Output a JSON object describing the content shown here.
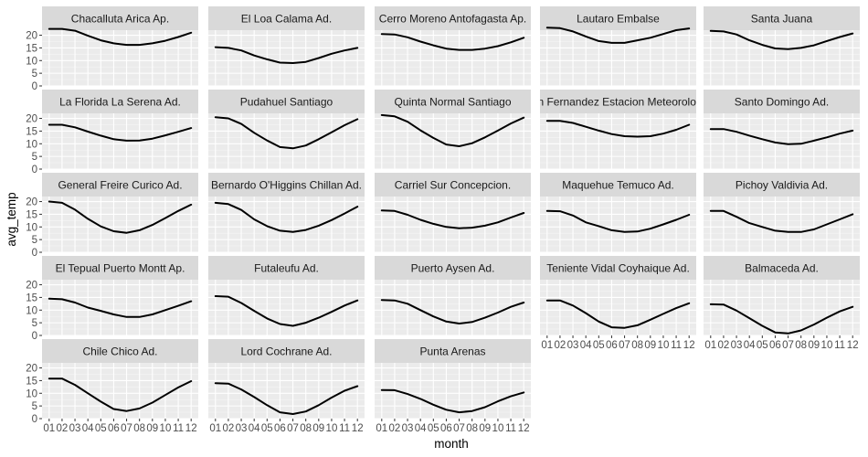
{
  "chart_data": {
    "type": "line",
    "xlabel": "month",
    "ylabel": "avg_temp",
    "x": [
      "01",
      "02",
      "03",
      "04",
      "05",
      "06",
      "07",
      "08",
      "09",
      "10",
      "11",
      "12"
    ],
    "ylim": [
      0,
      22
    ],
    "yticks": [
      0,
      5,
      10,
      15,
      20
    ],
    "facet_columns": 5,
    "grid": true,
    "panels": [
      {
        "title": "Chacalluta Arica Ap.",
        "values": [
          22.5,
          22.5,
          21.8,
          19.8,
          18.0,
          16.8,
          16.2,
          16.2,
          16.8,
          17.8,
          19.3,
          21.0
        ]
      },
      {
        "title": "El Loa Calama Ad.",
        "values": [
          15.3,
          15.0,
          14.0,
          12.0,
          10.5,
          9.2,
          9.0,
          9.5,
          11.0,
          12.7,
          14.0,
          15.0
        ]
      },
      {
        "title": "Cerro Moreno Antofagasta Ap.",
        "values": [
          20.5,
          20.3,
          19.2,
          17.5,
          16.0,
          14.7,
          14.2,
          14.2,
          14.7,
          15.7,
          17.2,
          19.0
        ]
      },
      {
        "title": "Lautaro Embalse",
        "values": [
          23.0,
          22.8,
          21.5,
          19.5,
          17.7,
          17.0,
          17.0,
          18.0,
          19.0,
          20.5,
          22.0,
          22.7
        ]
      },
      {
        "title": "Santa Juana",
        "values": [
          21.7,
          21.5,
          20.3,
          18.0,
          16.2,
          14.8,
          14.5,
          15.0,
          16.0,
          17.7,
          19.3,
          20.7
        ]
      },
      {
        "title": "La Florida La Serena Ad.",
        "values": [
          17.5,
          17.5,
          16.5,
          14.8,
          13.2,
          11.8,
          11.2,
          11.3,
          12.0,
          13.3,
          14.7,
          16.2
        ]
      },
      {
        "title": "Pudahuel Santiago",
        "values": [
          20.5,
          20.0,
          17.8,
          14.3,
          11.3,
          8.7,
          8.2,
          9.3,
          11.8,
          14.5,
          17.3,
          19.7
        ]
      },
      {
        "title": "Quinta Normal Santiago",
        "values": [
          21.3,
          20.8,
          18.7,
          15.3,
          12.3,
          9.7,
          9.0,
          10.2,
          12.5,
          15.2,
          18.0,
          20.3
        ]
      },
      {
        "title": "Juan Fernandez Estacion Meteorologica",
        "values": [
          19.0,
          19.0,
          18.2,
          16.7,
          15.2,
          13.8,
          13.0,
          12.8,
          13.0,
          14.0,
          15.5,
          17.5
        ]
      },
      {
        "title": "Santo Domingo Ad.",
        "values": [
          15.8,
          15.8,
          14.7,
          13.2,
          11.8,
          10.5,
          9.8,
          10.0,
          11.2,
          12.5,
          14.0,
          15.2
        ]
      },
      {
        "title": "General Freire Curico Ad.",
        "values": [
          20.0,
          19.5,
          16.8,
          13.2,
          10.2,
          8.3,
          7.7,
          8.7,
          10.8,
          13.5,
          16.3,
          18.8
        ]
      },
      {
        "title": "Bernardo O'Higgins Chillan Ad.",
        "values": [
          19.5,
          19.0,
          16.7,
          13.0,
          10.3,
          8.5,
          8.0,
          8.8,
          10.5,
          12.7,
          15.3,
          18.0
        ]
      },
      {
        "title": "Carriel Sur Concepcion.",
        "values": [
          16.5,
          16.3,
          14.8,
          12.8,
          11.2,
          10.0,
          9.5,
          9.7,
          10.5,
          11.8,
          13.7,
          15.5
        ]
      },
      {
        "title": "Maquehue Temuco Ad.",
        "values": [
          16.3,
          16.2,
          14.5,
          11.8,
          10.3,
          8.7,
          8.0,
          8.2,
          9.3,
          11.0,
          12.8,
          14.8
        ]
      },
      {
        "title": "Pichoy Valdivia Ad.",
        "values": [
          16.3,
          16.3,
          14.0,
          11.5,
          10.0,
          8.5,
          8.0,
          8.0,
          9.0,
          11.0,
          13.0,
          15.0
        ]
      },
      {
        "title": "El Tepual Puerto Montt Ap.",
        "values": [
          14.5,
          14.3,
          13.0,
          11.0,
          9.7,
          8.3,
          7.3,
          7.3,
          8.3,
          10.0,
          11.7,
          13.5
        ]
      },
      {
        "title": "Futaleufu Ad.",
        "values": [
          15.5,
          15.3,
          12.8,
          9.7,
          6.7,
          4.5,
          3.8,
          5.0,
          7.0,
          9.3,
          11.8,
          13.8
        ]
      },
      {
        "title": "Puerto Aysen Ad.",
        "values": [
          14.0,
          13.8,
          12.5,
          10.0,
          7.5,
          5.5,
          4.7,
          5.3,
          7.0,
          9.0,
          11.3,
          13.0
        ]
      },
      {
        "title": "Teniente Vidal Coyhaique Ad.",
        "values": [
          13.8,
          13.8,
          11.8,
          8.8,
          5.5,
          3.2,
          3.0,
          4.0,
          6.2,
          8.5,
          10.8,
          12.7
        ]
      },
      {
        "title": "Balmaceda Ad.",
        "values": [
          12.3,
          12.2,
          9.8,
          6.8,
          3.8,
          1.2,
          0.8,
          2.0,
          4.3,
          7.0,
          9.5,
          11.3
        ]
      },
      {
        "title": "Chile Chico Ad.",
        "values": [
          15.8,
          15.8,
          13.3,
          10.0,
          6.7,
          3.8,
          3.0,
          4.0,
          6.3,
          9.3,
          12.3,
          14.8
        ]
      },
      {
        "title": "Lord Cochrane Ad.",
        "values": [
          14.0,
          13.8,
          11.5,
          8.5,
          5.3,
          2.5,
          1.8,
          2.8,
          5.3,
          8.3,
          11.0,
          12.8
        ]
      },
      {
        "title": "Punta Arenas",
        "values": [
          11.3,
          11.2,
          9.7,
          7.8,
          5.5,
          3.5,
          2.5,
          3.0,
          4.5,
          6.8,
          8.8,
          10.3
        ]
      }
    ]
  }
}
